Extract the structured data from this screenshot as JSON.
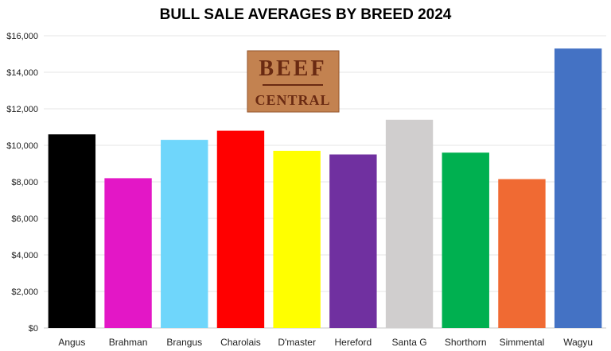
{
  "chart_data": {
    "type": "bar",
    "title": "BULL SALE AVERAGES BY BREED 2024",
    "xlabel": "",
    "ylabel": "",
    "ylim": [
      0,
      16000
    ],
    "yticks": [
      0,
      2000,
      4000,
      6000,
      8000,
      10000,
      12000,
      14000,
      16000
    ],
    "ytick_labels": [
      "$0",
      "$2,000",
      "$4,000",
      "$6,000",
      "$8,000",
      "$10,000",
      "$12,000",
      "$14,000",
      "$16,000"
    ],
    "grid": true,
    "legend": "none",
    "categories": [
      "Angus",
      "Brahman",
      "Brangus",
      "Charolais",
      "D'master",
      "Hereford",
      "Santa G",
      "Shorthorn",
      "Simmental",
      "Wagyu"
    ],
    "values": [
      10600,
      8200,
      10300,
      10800,
      9700,
      9500,
      11400,
      9600,
      8150,
      15300
    ],
    "colors": [
      "#000000",
      "#e317c6",
      "#6fd6fb",
      "#ff0000",
      "#ffff00",
      "#7030a0",
      "#d0cece",
      "#00b050",
      "#f06a33",
      "#4472c4"
    ]
  },
  "logo": {
    "line1": "BEEF",
    "line2": "CENTRAL"
  }
}
